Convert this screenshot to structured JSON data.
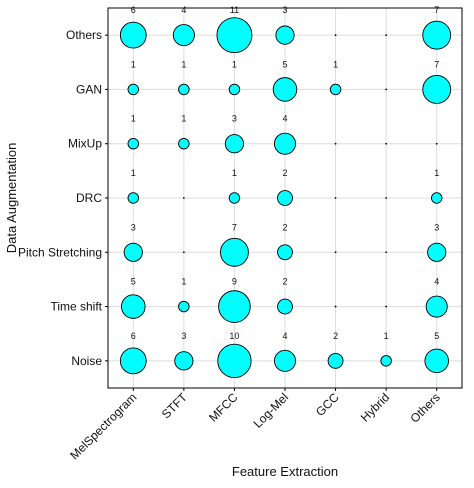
{
  "chart_data": {
    "type": "scatter",
    "subtype": "bubble",
    "title": "",
    "xlabel": "Feature Extraction",
    "ylabel": "Data Augmentation",
    "x_categories": [
      "MelSpectrogram",
      "STFT",
      "MFCC",
      "Log-Mel",
      "GCC",
      "Hybrid",
      "Others"
    ],
    "y_categories": [
      "Others",
      "GAN",
      "MixUp",
      "DRC",
      "Pitch Stretching",
      "Time shift",
      "Noise"
    ],
    "counts": [
      [
        6,
        4,
        11,
        3,
        null,
        null,
        7
      ],
      [
        1,
        1,
        1,
        5,
        1,
        null,
        7
      ],
      [
        1,
        1,
        3,
        4,
        null,
        null,
        null
      ],
      [
        1,
        null,
        1,
        2,
        null,
        null,
        1
      ],
      [
        3,
        null,
        7,
        2,
        null,
        null,
        3
      ],
      [
        5,
        1,
        9,
        2,
        null,
        null,
        4
      ],
      [
        6,
        3,
        10,
        4,
        2,
        1,
        5
      ]
    ],
    "count_labels": [
      [
        "6",
        "4",
        "11",
        "3",
        "",
        "",
        "7"
      ],
      [
        "1",
        "1",
        "1",
        "5",
        "1",
        "",
        "7"
      ],
      [
        "1",
        "1",
        "3",
        "4",
        "",
        "",
        ""
      ],
      [
        "1",
        "",
        "1",
        "2",
        "",
        "",
        "1"
      ],
      [
        "3",
        "",
        "7",
        "2",
        "",
        "",
        "3"
      ],
      [
        "5",
        "1",
        "9",
        "2",
        "",
        "",
        "4"
      ],
      [
        "6",
        "3",
        "10",
        "4",
        "2",
        "1",
        "5"
      ]
    ],
    "grid": true,
    "colors": {
      "bubble_fill": "#00ffff",
      "bubble_stroke": "#000000",
      "grid": "#dddddd",
      "frame": "#000000"
    }
  }
}
